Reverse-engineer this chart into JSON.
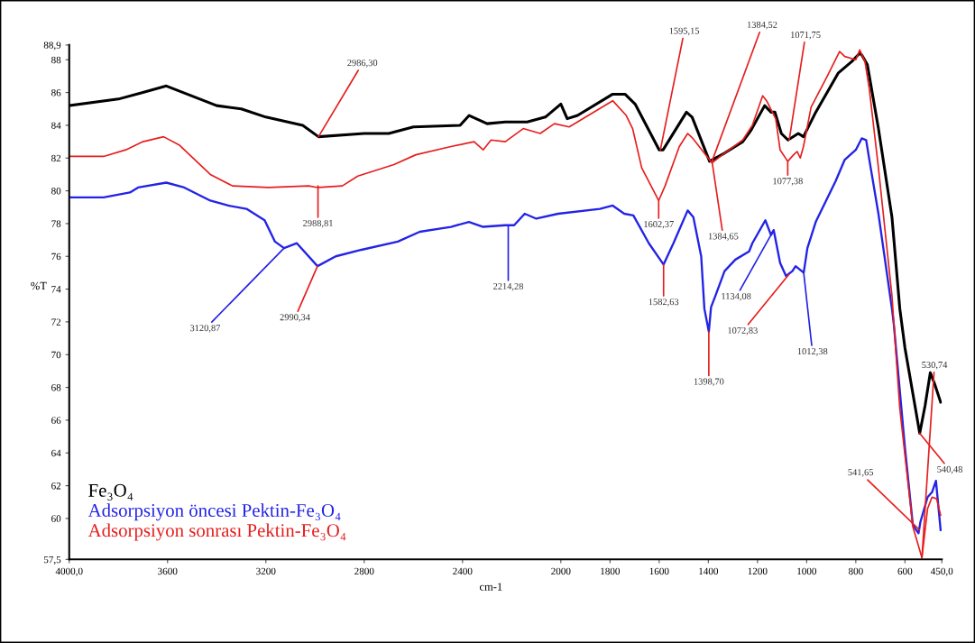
{
  "chart_data": {
    "type": "line",
    "xlabel": "cm-1",
    "ylabel": "%T",
    "xlim": [
      4000,
      450
    ],
    "ylim": [
      57.5,
      88.9
    ],
    "xticks": [
      {
        "value": 4000,
        "label": "4000,0"
      },
      3600,
      3200,
      2800,
      2400,
      2000,
      1800,
      1600,
      1400,
      1200,
      1000,
      800,
      600,
      {
        "value": 450,
        "label": "450,0"
      }
    ],
    "yticks": [
      {
        "value": 57.5,
        "label": "57,5"
      },
      60,
      62,
      64,
      66,
      68,
      70,
      72,
      74,
      76,
      78,
      80,
      82,
      84,
      86,
      88,
      {
        "value": 88.9,
        "label": "88,9"
      }
    ],
    "grid": false,
    "legend": "bottom left",
    "marker": "none",
    "line_style": "solid",
    "series": [
      {
        "name": "Fe₃O₄",
        "color": "#000000",
        "x": [
          4000,
          3800,
          3700,
          3605,
          3400,
          3300,
          3200,
          3050,
          2986,
          2800,
          2700,
          2600,
          2410,
          2373,
          2300,
          2226,
          2137,
          2063,
          2000,
          1974,
          1932,
          1789,
          1739,
          1698,
          1600,
          1584,
          1489,
          1466,
          1395,
          1334,
          1260,
          1226,
          1171,
          1145,
          1129,
          1103,
          1076,
          1034,
          1013,
          963,
          871,
          816,
          784,
          776,
          753,
          708,
          653,
          621,
          600,
          540,
          518,
          497,
          479,
          455
        ],
        "values": [
          85.2,
          85.6,
          86.0,
          86.4,
          85.2,
          85.0,
          84.5,
          84.0,
          83.3,
          83.5,
          83.5,
          83.9,
          84.0,
          84.6,
          84.1,
          84.2,
          84.2,
          84.5,
          85.3,
          84.4,
          84.6,
          85.9,
          85.9,
          85.3,
          82.5,
          82.5,
          84.8,
          84.5,
          81.8,
          82.3,
          83.0,
          83.7,
          85.2,
          84.8,
          84.8,
          83.5,
          83.1,
          83.5,
          83.3,
          84.8,
          87.2,
          87.9,
          88.4,
          88.3,
          87.7,
          83.8,
          78.4,
          72.8,
          70.4,
          65.2,
          66.9,
          68.9,
          68.2,
          67.1
        ]
      },
      {
        "name": "Adsorpsiyon öncesi Pektin-Fe₃O₄",
        "color": "#2323e6",
        "x": [
          4000,
          3860,
          3753,
          3720,
          3605,
          3532,
          3426,
          3353,
          3279,
          3205,
          3163,
          3126,
          3074,
          2990,
          2916,
          2811,
          2663,
          2574,
          2447,
          2374,
          2316,
          2226,
          2190,
          2147,
          2100,
          2011,
          1841,
          1789,
          1742,
          1705,
          1642,
          1582,
          1542,
          1484,
          1461,
          1429,
          1416,
          1398,
          1389,
          1371,
          1334,
          1290,
          1234,
          1221,
          1168,
          1145,
          1134,
          1108,
          1084,
          1058,
          1045,
          1012,
          997,
          963,
          882,
          845,
          800,
          776,
          758,
          745,
          708,
          653,
          645,
          600,
          568,
          545,
          537,
          508,
          490,
          474,
          455
        ],
        "values": [
          79.6,
          79.6,
          79.9,
          80.2,
          80.5,
          80.2,
          79.4,
          79.1,
          78.9,
          78.2,
          76.9,
          76.5,
          76.8,
          75.4,
          76.0,
          76.4,
          76.9,
          77.5,
          77.8,
          78.1,
          77.8,
          77.9,
          77.9,
          78.6,
          78.3,
          78.6,
          78.9,
          79.1,
          78.6,
          78.5,
          76.8,
          75.5,
          76.8,
          78.8,
          78.4,
          76.0,
          72.8,
          71.4,
          72.9,
          73.6,
          75.1,
          75.8,
          76.3,
          76.8,
          78.2,
          77.3,
          77.6,
          75.6,
          74.8,
          75.1,
          75.4,
          75.0,
          76.5,
          78.1,
          80.6,
          81.9,
          82.5,
          83.2,
          83.1,
          81.9,
          78.6,
          72.8,
          71.8,
          64.3,
          59.6,
          59.1,
          59.8,
          61.3,
          61.6,
          62.3,
          59.3
        ]
      },
      {
        "name": "Adsorpsiyon sonrası Pektin-Fe₃O₄",
        "color": "#e61e1e",
        "x": [
          4000,
          3860,
          3770,
          3700,
          3616,
          3553,
          3426,
          3336,
          3189,
          3026,
          2988,
          2889,
          2826,
          2679,
          2590,
          2447,
          2353,
          2316,
          2284,
          2226,
          2153,
          2084,
          2026,
          1966,
          1789,
          1734,
          1708,
          1671,
          1602,
          1576,
          1518,
          1484,
          1463,
          1385,
          1334,
          1260,
          1221,
          1179,
          1163,
          1126,
          1108,
          1077,
          1053,
          1039,
          1026,
          1013,
          982,
          916,
          866,
          845,
          800,
          784,
          763,
          745,
          708,
          653,
          621,
          568,
          531,
          508,
          490,
          471,
          455
        ],
        "values": [
          82.1,
          82.1,
          82.5,
          83.0,
          83.3,
          82.8,
          81.0,
          80.3,
          80.2,
          80.3,
          80.2,
          80.3,
          80.9,
          81.6,
          82.2,
          82.7,
          83.0,
          82.5,
          83.1,
          83.0,
          83.8,
          83.5,
          84.1,
          83.9,
          85.5,
          84.6,
          83.8,
          81.4,
          79.4,
          80.3,
          82.7,
          83.5,
          83.2,
          81.7,
          82.3,
          83.1,
          84.0,
          85.8,
          85.5,
          84.4,
          82.5,
          81.8,
          82.2,
          82.4,
          82.0,
          82.7,
          85.1,
          87.0,
          88.5,
          88.2,
          88.0,
          88.6,
          87.9,
          86.2,
          81.4,
          73.6,
          66.7,
          59.5,
          57.6,
          60.6,
          61.3,
          61.2,
          60.2
        ]
      }
    ],
    "annotations": [
      {
        "text": "2986,30",
        "x": 2986,
        "y": 83.3
      },
      {
        "text": "2988,81",
        "x": 2988,
        "y": 80.3
      },
      {
        "text": "3120,87",
        "x": 3126,
        "y": 76.5
      },
      {
        "text": "2990,34",
        "x": 2990,
        "y": 75.4
      },
      {
        "text": "2214,28",
        "x": 2214,
        "y": 77.9
      },
      {
        "text": "1595,15",
        "x": 1595,
        "y": 82.5
      },
      {
        "text": "1384,52",
        "x": 1385,
        "y": 81.8
      },
      {
        "text": "1071,75",
        "x": 1071,
        "y": 83.1
      },
      {
        "text": "1602,37",
        "x": 1602,
        "y": 79.4
      },
      {
        "text": "1384,65",
        "x": 1385,
        "y": 81.8
      },
      {
        "text": "1077,38",
        "x": 1077,
        "y": 81.8
      },
      {
        "text": "1582,63",
        "x": 1582,
        "y": 75.5
      },
      {
        "text": "1134,08",
        "x": 1134,
        "y": 77.6
      },
      {
        "text": "1072,83",
        "x": 1072,
        "y": 74.9
      },
      {
        "text": "1012,38",
        "x": 1012,
        "y": 75.0
      },
      {
        "text": "1398,70",
        "x": 1398,
        "y": 71.4
      },
      {
        "text": "540,48",
        "x": 540,
        "y": 65.2
      },
      {
        "text": "530,74",
        "x": 531,
        "y": 57.6
      },
      {
        "text": "541,65",
        "x": 541,
        "y": 59.3
      }
    ]
  }
}
